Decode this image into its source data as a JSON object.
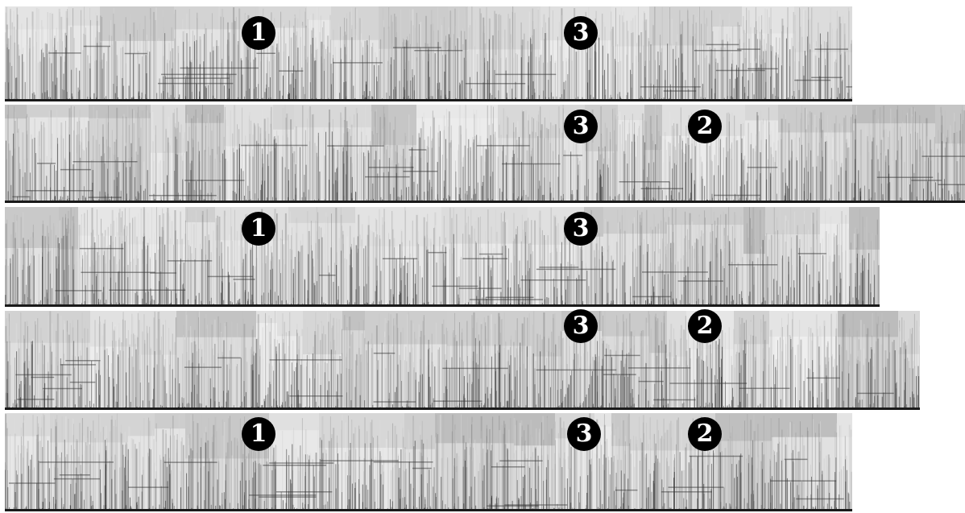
{
  "strips": [
    {
      "id": "strip-1",
      "markers": [
        "1",
        "3"
      ]
    },
    {
      "id": "strip-2",
      "markers": [
        "3",
        "2"
      ]
    },
    {
      "id": "strip-3",
      "markers": [
        "1",
        "3"
      ]
    },
    {
      "id": "strip-4",
      "markers": [
        "3",
        "2"
      ]
    },
    {
      "id": "strip-5",
      "markers": [
        "1",
        "3",
        "2"
      ]
    }
  ],
  "colors": {
    "background": "#ffffff",
    "marker_fill": "#000000",
    "marker_text": "#ffffff"
  }
}
